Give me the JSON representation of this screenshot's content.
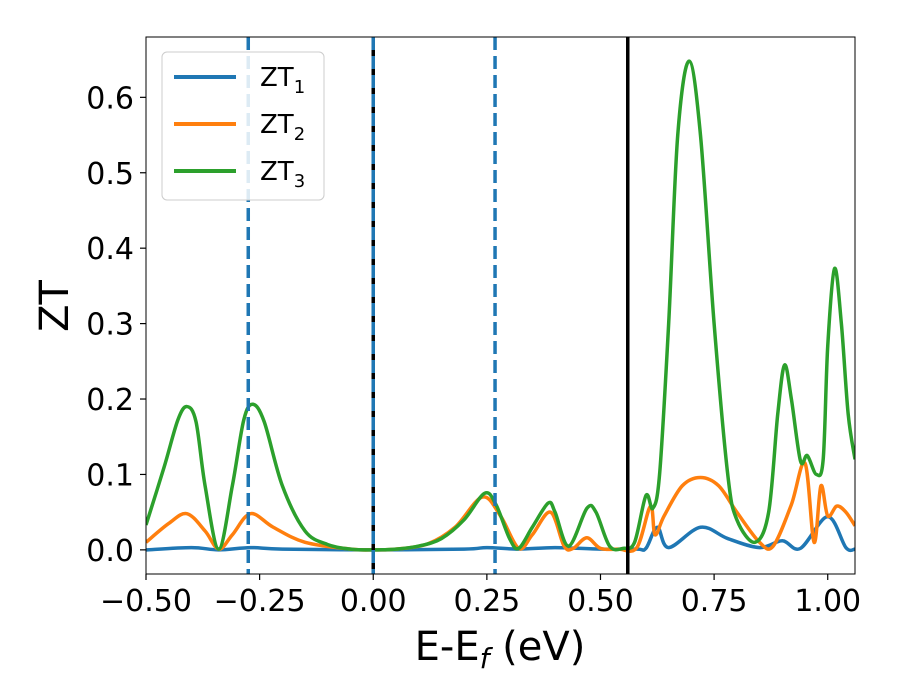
{
  "chart_data": {
    "type": "line",
    "xlabel": "E-E",
    "xlabel_sub": "f",
    "xlabel_unit": " (eV)",
    "ylabel": "ZT",
    "xlim": [
      -0.5,
      1.06
    ],
    "ylim": [
      -0.032,
      0.68
    ],
    "xticks": [
      -0.5,
      -0.25,
      0.0,
      0.25,
      0.5,
      0.75,
      1.0
    ],
    "xtick_labels": [
      "−0.50",
      "−0.25",
      "0.00",
      "0.25",
      "0.50",
      "0.75",
      "1.00"
    ],
    "yticks": [
      0.0,
      0.1,
      0.2,
      0.3,
      0.4,
      0.5,
      0.6
    ],
    "ytick_labels": [
      "0.0",
      "0.1",
      "0.2",
      "0.3",
      "0.4",
      "0.5",
      "0.6"
    ],
    "grid": false,
    "legend_position": "top-left",
    "series": [
      {
        "name": "ZT",
        "subscript": "1",
        "color": "#1f77b4",
        "x": [
          -0.5,
          -0.4,
          -0.34,
          -0.27,
          -0.2,
          0.0,
          0.2,
          0.25,
          0.32,
          0.4,
          0.5,
          0.58,
          0.6,
          0.625,
          0.65,
          0.72,
          0.78,
          0.85,
          0.9,
          0.94,
          1.0,
          1.04,
          1.06
        ],
        "y": [
          0.0,
          0.003,
          0.0,
          0.003,
          0.001,
          0.0,
          0.001,
          0.003,
          0.001,
          0.003,
          0.001,
          0.001,
          0.002,
          0.03,
          0.003,
          0.03,
          0.015,
          0.003,
          0.012,
          0.002,
          0.044,
          0.003,
          0.001
        ]
      },
      {
        "name": "ZT",
        "subscript": "2",
        "color": "#ff7f0e",
        "x": [
          -0.5,
          -0.45,
          -0.41,
          -0.37,
          -0.34,
          -0.31,
          -0.27,
          -0.22,
          -0.15,
          -0.05,
          0.0,
          0.05,
          0.12,
          0.18,
          0.24,
          0.28,
          0.32,
          0.35,
          0.39,
          0.42,
          0.44,
          0.47,
          0.5,
          0.54,
          0.58,
          0.61,
          0.62,
          0.64,
          0.68,
          0.72,
          0.76,
          0.8,
          0.85,
          0.88,
          0.92,
          0.95,
          0.97,
          0.985,
          1.0,
          1.02,
          1.04,
          1.06
        ],
        "y": [
          0.01,
          0.035,
          0.048,
          0.025,
          0.001,
          0.02,
          0.048,
          0.03,
          0.01,
          0.001,
          0.0,
          0.001,
          0.008,
          0.03,
          0.07,
          0.045,
          0.002,
          0.02,
          0.05,
          0.005,
          0.002,
          0.016,
          0.002,
          0.001,
          0.003,
          0.058,
          0.02,
          0.045,
          0.085,
          0.096,
          0.085,
          0.05,
          0.01,
          0.005,
          0.06,
          0.115,
          0.01,
          0.085,
          0.045,
          0.058,
          0.05,
          0.032
        ]
      },
      {
        "name": "ZT",
        "subscript": "3",
        "color": "#2ca02c",
        "x": [
          -0.5,
          -0.46,
          -0.43,
          -0.41,
          -0.39,
          -0.37,
          -0.34,
          -0.31,
          -0.285,
          -0.265,
          -0.24,
          -0.2,
          -0.15,
          -0.1,
          -0.05,
          0.0,
          0.05,
          0.1,
          0.15,
          0.2,
          0.245,
          0.27,
          0.3,
          0.32,
          0.35,
          0.385,
          0.4,
          0.43,
          0.47,
          0.49,
          0.52,
          0.55,
          0.575,
          0.6,
          0.615,
          0.63,
          0.65,
          0.67,
          0.695,
          0.72,
          0.75,
          0.78,
          0.8,
          0.84,
          0.87,
          0.89,
          0.905,
          0.92,
          0.94,
          0.955,
          0.975,
          0.99,
          1.0,
          1.015,
          1.03,
          1.045,
          1.06
        ],
        "y": [
          0.033,
          0.11,
          0.172,
          0.19,
          0.17,
          0.085,
          0.001,
          0.085,
          0.172,
          0.193,
          0.17,
          0.085,
          0.025,
          0.007,
          0.001,
          0.0,
          0.001,
          0.005,
          0.015,
          0.04,
          0.075,
          0.06,
          0.015,
          0.002,
          0.03,
          0.062,
          0.05,
          0.005,
          0.055,
          0.05,
          0.005,
          0.002,
          0.01,
          0.072,
          0.055,
          0.1,
          0.3,
          0.55,
          0.648,
          0.55,
          0.3,
          0.1,
          0.04,
          0.01,
          0.05,
          0.18,
          0.245,
          0.2,
          0.118,
          0.125,
          0.1,
          0.12,
          0.27,
          0.373,
          0.3,
          0.18,
          0.12
        ]
      }
    ],
    "vlines": [
      {
        "x": -0.275,
        "style": "dashed",
        "color": "#1f77b4"
      },
      {
        "x": 0.0,
        "style": "solid",
        "color": "#000000"
      },
      {
        "x": 0.0,
        "style": "dashed",
        "color": "#1f77b4"
      },
      {
        "x": 0.268,
        "style": "dashed",
        "color": "#1f77b4"
      },
      {
        "x": 0.56,
        "style": "solid",
        "color": "#000000"
      }
    ]
  }
}
